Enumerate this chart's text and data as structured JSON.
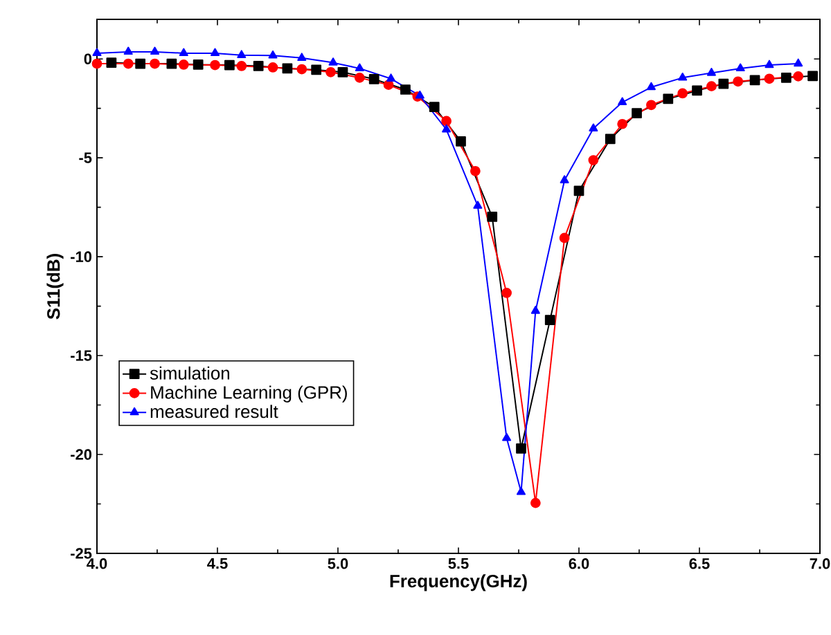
{
  "chart_data": {
    "type": "line",
    "xlabel": "Frequency(GHz)",
    "ylabel": "S11(dB)",
    "xlim": [
      4.0,
      7.0
    ],
    "ylim": [
      -25,
      2
    ],
    "xticks": [
      {
        "value": 4,
        "label": "4.0"
      },
      {
        "value": 4.5,
        "label": "4.5"
      },
      {
        "value": 5,
        "label": "5.0"
      },
      {
        "value": 5.5,
        "label": "5.5"
      },
      {
        "value": 6,
        "label": "6.0"
      },
      {
        "value": 6.5,
        "label": "6.5"
      },
      {
        "value": 7,
        "label": "7.0"
      }
    ],
    "yticks": [
      0,
      -5,
      -10,
      -15,
      -20,
      -25
    ],
    "grid": false,
    "legend": "left",
    "line_style": "solid",
    "series": [
      {
        "name": "simulation",
        "color": "#000000",
        "marker": "square",
        "x": [
          4.06,
          4.18,
          4.31,
          4.42,
          4.55,
          4.67,
          4.79,
          4.91,
          5.02,
          5.15,
          5.28,
          5.4,
          5.51,
          5.64,
          5.76,
          5.88,
          6.0,
          6.13,
          6.24,
          6.37,
          6.49,
          6.6,
          6.73,
          6.86,
          6.97
        ],
        "values": [
          -0.19,
          -0.24,
          -0.24,
          -0.29,
          -0.31,
          -0.36,
          -0.48,
          -0.55,
          -0.67,
          -1.02,
          -1.55,
          -2.43,
          -4.17,
          -7.98,
          -19.7,
          -13.2,
          -6.67,
          -4.05,
          -2.74,
          -2.02,
          -1.6,
          -1.26,
          -1.07,
          -0.95,
          -0.86
        ]
      },
      {
        "name": "Machine Learning (GPR)",
        "color": "#ff0000",
        "marker": "circle",
        "x": [
          4.0,
          4.13,
          4.24,
          4.36,
          4.49,
          4.6,
          4.73,
          4.85,
          4.97,
          5.09,
          5.21,
          5.33,
          5.45,
          5.57,
          5.7,
          5.82,
          5.94,
          6.06,
          6.18,
          6.3,
          6.43,
          6.55,
          6.66,
          6.79,
          6.91
        ],
        "values": [
          -0.24,
          -0.24,
          -0.24,
          -0.29,
          -0.31,
          -0.36,
          -0.43,
          -0.52,
          -0.67,
          -0.95,
          -1.31,
          -1.9,
          -3.14,
          -5.67,
          -11.83,
          -22.45,
          -9.05,
          -5.12,
          -3.29,
          -2.33,
          -1.74,
          -1.38,
          -1.14,
          -1.0,
          -0.88
        ]
      },
      {
        "name": "measured result",
        "color": "#0000ff",
        "marker": "triangle",
        "x": [
          4.0,
          4.13,
          4.24,
          4.36,
          4.49,
          4.6,
          4.73,
          4.85,
          4.98,
          5.09,
          5.22,
          5.34,
          5.45,
          5.58,
          5.7,
          5.76,
          5.82,
          5.94,
          6.06,
          6.18,
          6.3,
          6.43,
          6.55,
          6.67,
          6.79,
          6.91
        ],
        "values": [
          0.29,
          0.36,
          0.36,
          0.29,
          0.29,
          0.19,
          0.17,
          0.05,
          -0.19,
          -0.48,
          -1.0,
          -1.86,
          -3.57,
          -7.43,
          -19.17,
          -21.9,
          -12.74,
          -6.14,
          -3.52,
          -2.19,
          -1.43,
          -0.95,
          -0.71,
          -0.48,
          -0.31,
          -0.24
        ]
      }
    ]
  }
}
